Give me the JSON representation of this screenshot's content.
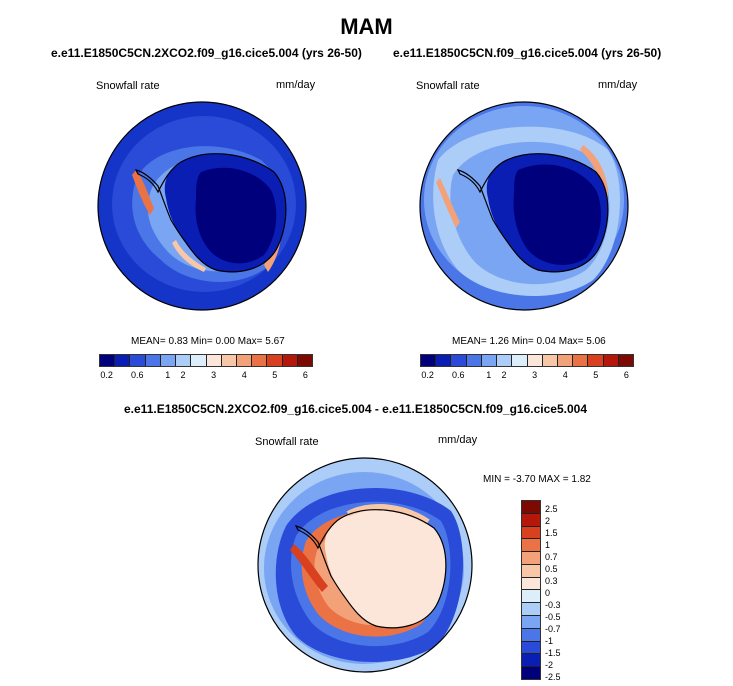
{
  "figure": {
    "season_title": "MAM"
  },
  "panels": [
    {
      "title": "e.e11.E1850C5CN.2XCO2.f09_g16.cice5.004 (yrs 26-50)",
      "field_label": "Snowfall rate",
      "units": "mm/day",
      "stats": {
        "mean_label": "MEAN=",
        "mean_value": "0.83",
        "min_label": "Min=",
        "min_value": "0.00",
        "max_label": "Max=",
        "max_value": "5.67"
      }
    },
    {
      "title": "e.e11.E1850C5CN.f09_g16.cice5.004 (yrs 26-50)",
      "field_label": "Snowfall rate",
      "units": "mm/day",
      "stats": {
        "mean_label": "MEAN=",
        "mean_value": "1.26",
        "min_label": "Min=",
        "min_value": "0.04",
        "max_label": "Max=",
        "max_value": "5.06"
      }
    }
  ],
  "difference_panel": {
    "title": "e.e11.E1850C5CN.2XCO2.f09_g16.cice5.004 - e.e11.E1850C5CN.f09_g16.cice5.004",
    "field_label": "Snowfall rate",
    "units": "mm/day",
    "stats": {
      "min_label": "MIN =",
      "min_value": "-3.70",
      "max_label": "MAX =",
      "max_value": "1.82"
    }
  },
  "abs_colorbar": {
    "colors": [
      "#00007d",
      "#0a1eb4",
      "#2a4bd7",
      "#4a76e8",
      "#7aa5f3",
      "#abcdf7",
      "#ddeefb",
      "#fbe6d9",
      "#f7c7a8",
      "#f3a178",
      "#ea7245",
      "#d84020",
      "#b5170b",
      "#7d0a02"
    ],
    "tick_labels": [
      "0.2",
      "0.6",
      "1",
      "2",
      "3",
      "4",
      "5",
      "6"
    ]
  },
  "diff_colorbar": {
    "colors": [
      "#7d0a02",
      "#b5170b",
      "#d84020",
      "#ea7245",
      "#f3a178",
      "#f7c7a8",
      "#fbe6d9",
      "#ddeefb",
      "#abcdf7",
      "#7aa5f3",
      "#4a76e8",
      "#2a4bd7",
      "#0a1eb4",
      "#00007d"
    ],
    "tick_labels": [
      "2.5",
      "2",
      "1.5",
      "1",
      "0.7",
      "0.5",
      "0.3",
      "0",
      "-0.3",
      "-0.5",
      "-0.7",
      "-1",
      "-1.5",
      "-2",
      "-2.5"
    ]
  }
}
